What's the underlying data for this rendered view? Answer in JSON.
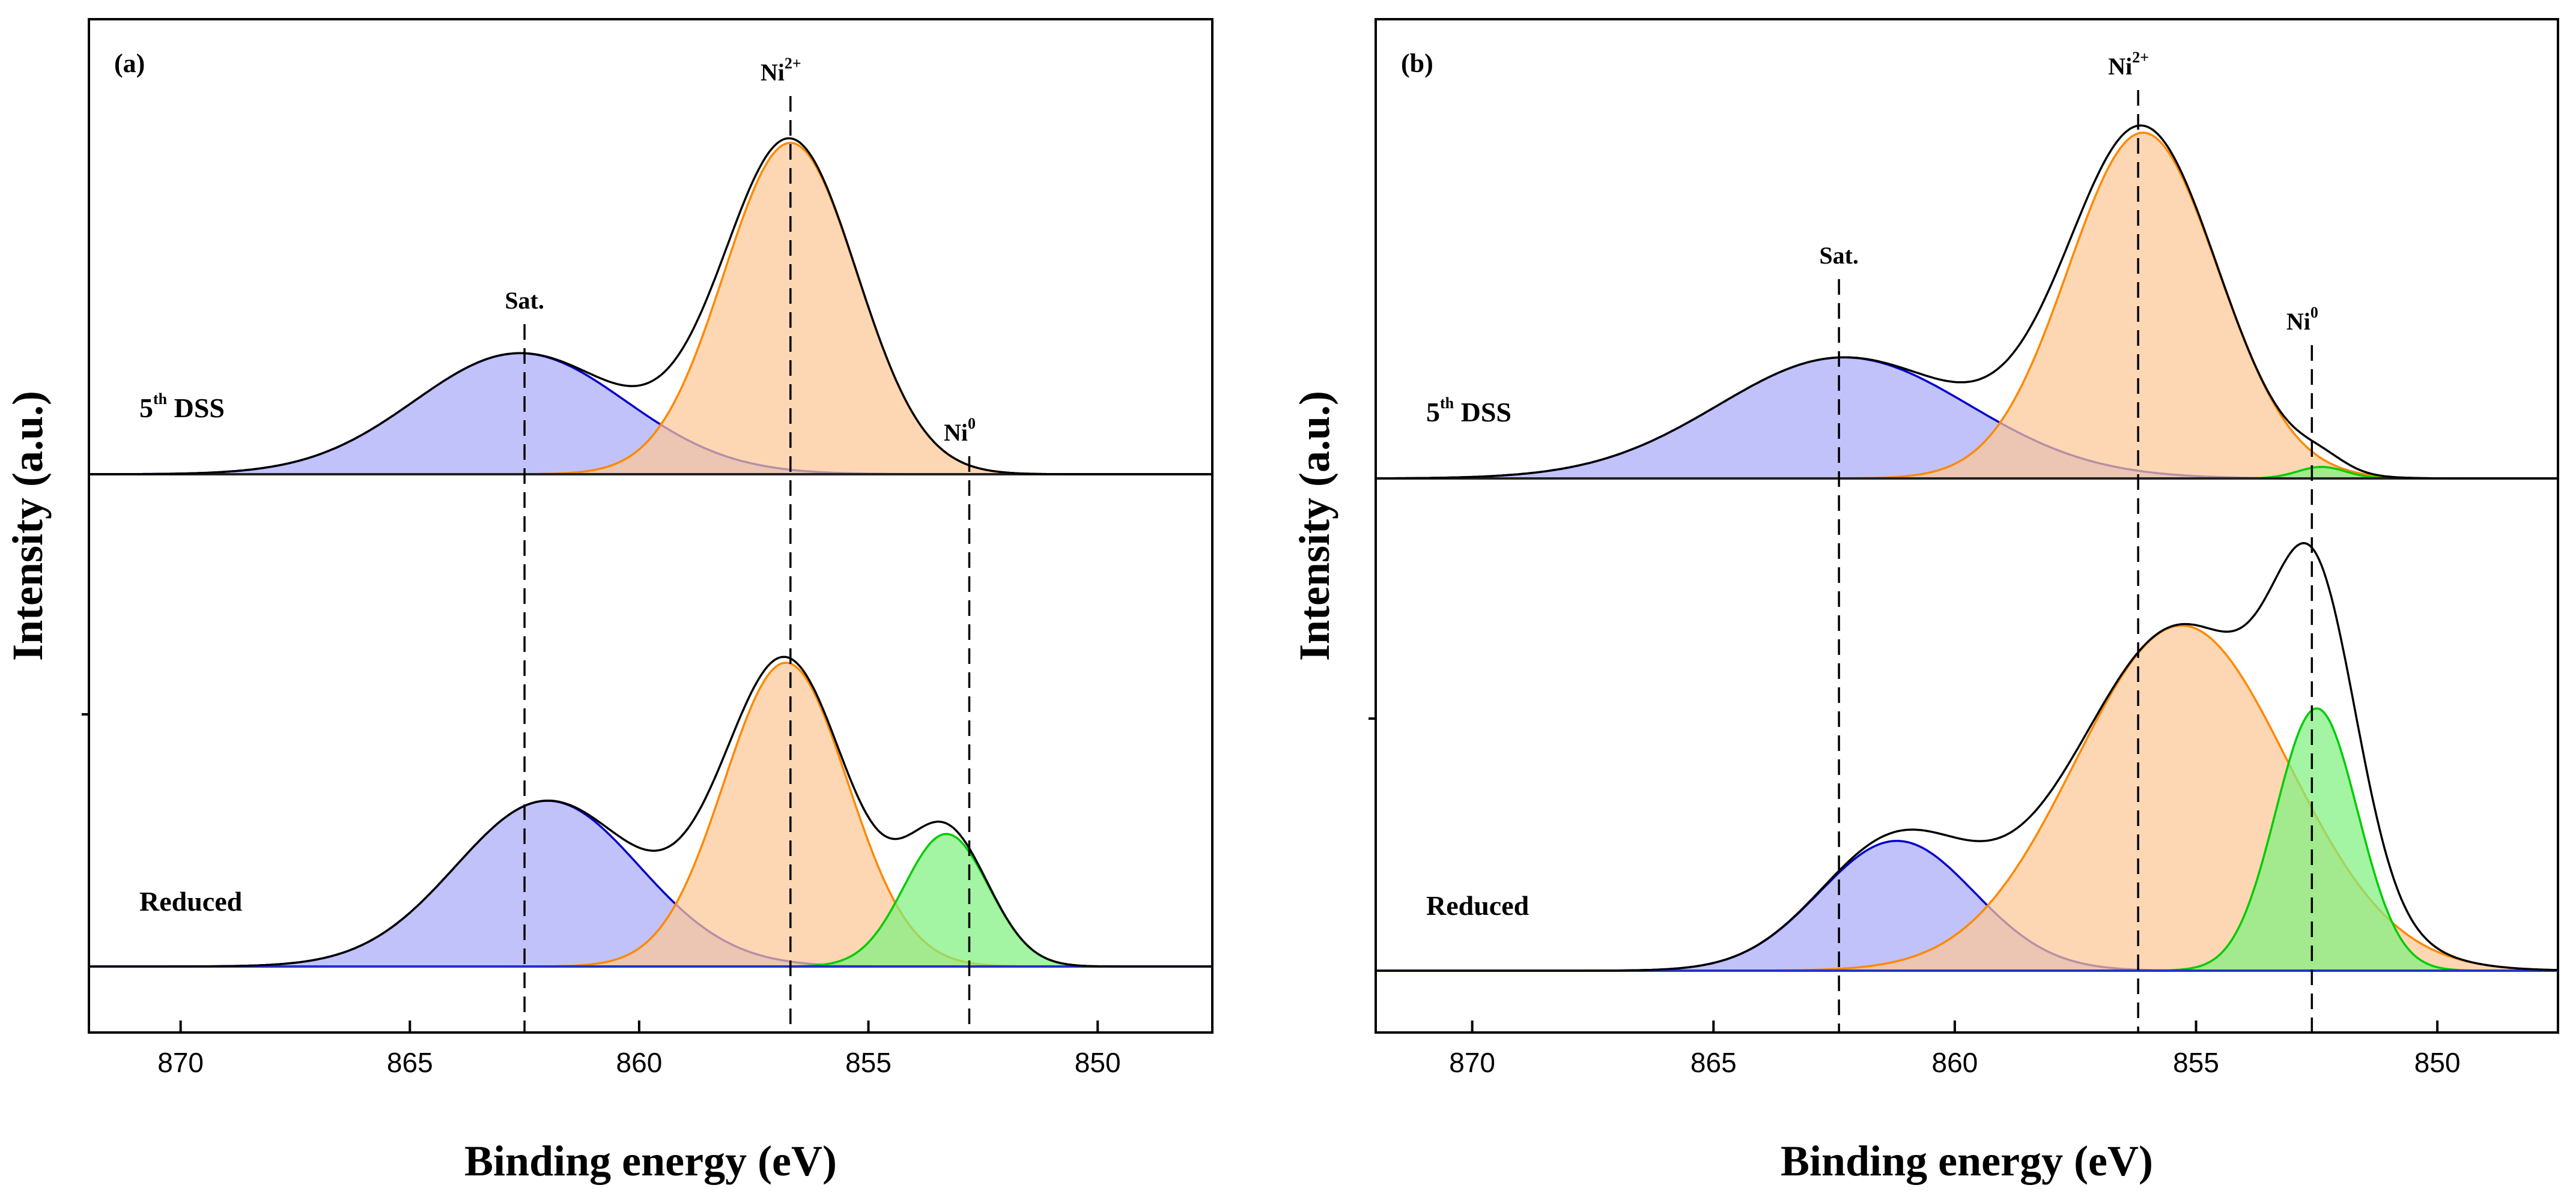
{
  "chart_data": [
    {
      "type": "area",
      "panel_label": "(a)",
      "xlabel": "Binding energy (eV)",
      "ylabel": "Intensity (a.u.)",
      "xlim": [
        872,
        847.5
      ],
      "x_reversed": true,
      "xticks": [
        870,
        865,
        860,
        855,
        850
      ],
      "grid": false,
      "sample_label_superscript": "th",
      "peak_labels": [
        {
          "id": "sat",
          "text": "Sat.",
          "x": 862.5,
          "sup": ""
        },
        {
          "id": "ni2",
          "text": "Ni",
          "x": 856.7,
          "sup": "2+"
        },
        {
          "id": "ni0",
          "text": "Ni",
          "x": 852.8,
          "sup": "0"
        }
      ],
      "series": [
        {
          "name": "5",
          "name_suffix": " DSS",
          "peaks": [
            {
              "component": "Sat.",
              "center": 862.6,
              "sigma": 2.3,
              "height": 0.42,
              "color": "#0000cc",
              "fill": "#aaaaf8"
            },
            {
              "component": "Ni2+",
              "center": 856.7,
              "sigma": 1.45,
              "height": 1.15,
              "color": "#ff8800",
              "fill": "#fcc896"
            },
            {
              "component": "Ni0",
              "center": 852.8,
              "sigma": 0.6,
              "height": 0.0,
              "color": "#00cc00",
              "fill": "#80f080"
            }
          ]
        },
        {
          "name": "Reduced",
          "name_suffix": "",
          "peaks": [
            {
              "component": "Sat.",
              "center": 862.0,
              "sigma": 2.0,
              "height": 0.6,
              "color": "#0000cc",
              "fill": "#aaaaf8"
            },
            {
              "component": "Ni2+",
              "center": 856.8,
              "sigma": 1.35,
              "height": 1.1,
              "color": "#ff8800",
              "fill": "#fcc896"
            },
            {
              "component": "Ni0",
              "center": 853.3,
              "sigma": 0.92,
              "height": 0.48,
              "color": "#00cc00",
              "fill": "#80f080"
            }
          ]
        }
      ]
    },
    {
      "type": "area",
      "panel_label": "(b)",
      "xlabel": "Binding energy (eV)",
      "ylabel": "Intensity (a.u.)",
      "xlim": [
        872,
        847.5
      ],
      "x_reversed": true,
      "xticks": [
        870,
        865,
        860,
        855,
        850
      ],
      "grid": false,
      "sample_label_superscript": "th",
      "peak_labels": [
        {
          "id": "sat",
          "text": "Sat.",
          "x": 862.4,
          "sup": ""
        },
        {
          "id": "ni2",
          "text": "Ni",
          "x": 856.2,
          "sup": "2+"
        },
        {
          "id": "ni0",
          "text": "Ni",
          "x": 852.6,
          "sup": "0"
        }
      ],
      "series": [
        {
          "name": "5",
          "name_suffix": " DSS",
          "peaks": [
            {
              "component": "Sat.",
              "center": 862.3,
              "sigma": 2.6,
              "height": 0.42,
              "color": "#0000cc",
              "fill": "#aaaaf8"
            },
            {
              "component": "Ni2+",
              "center": 856.1,
              "sigma": 1.55,
              "height": 1.2,
              "color": "#ff8800",
              "fill": "#fcc896"
            },
            {
              "component": "Ni0",
              "center": 852.4,
              "sigma": 0.5,
              "height": 0.04,
              "color": "#00cc00",
              "fill": "#80f080"
            }
          ]
        },
        {
          "name": "Reduced",
          "name_suffix": "",
          "peaks": [
            {
              "component": "Sat.",
              "center": 861.2,
              "sigma": 1.6,
              "height": 0.47,
              "color": "#0000cc",
              "fill": "#aaaaf8"
            },
            {
              "component": "Ni2+",
              "center": 855.3,
              "sigma": 2.2,
              "height": 1.25,
              "color": "#ff8800",
              "fill": "#fcc896"
            },
            {
              "component": "Ni0",
              "center": 852.5,
              "sigma": 0.85,
              "height": 0.95,
              "color": "#00cc00",
              "fill": "#80f080"
            }
          ]
        }
      ]
    }
  ]
}
